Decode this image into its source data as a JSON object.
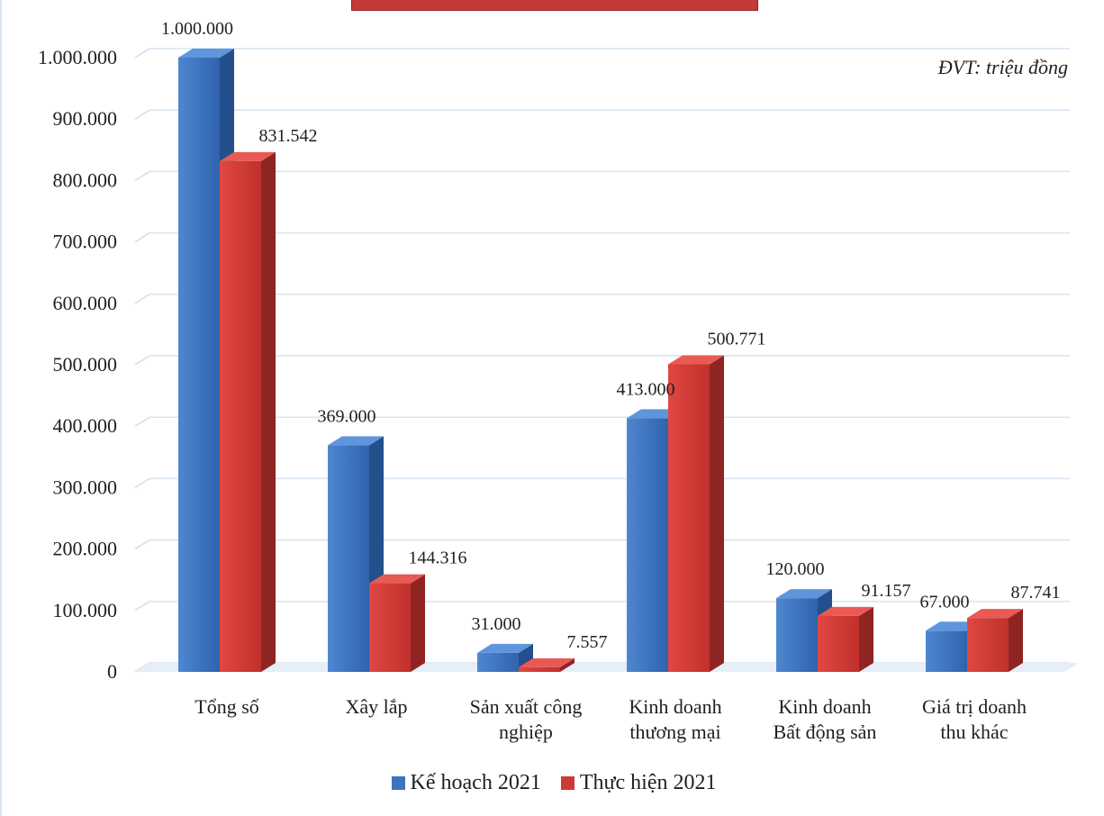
{
  "chart_data": {
    "type": "bar",
    "title": "",
    "unit_note": "ĐVT: triệu đồng",
    "categories": [
      [
        "Tổng số"
      ],
      [
        "Xây lắp"
      ],
      [
        "Sản xuất công",
        "nghiệp"
      ],
      [
        "Kinh doanh",
        "thương mại"
      ],
      [
        "Kinh doanh",
        "Bất động sản"
      ],
      [
        "Giá trị doanh",
        "thu khác"
      ]
    ],
    "series": [
      {
        "name": "Kế hoạch 2021",
        "color": "#3d74bf",
        "values": [
          1000000,
          369000,
          31000,
          413000,
          120000,
          67000
        ],
        "labels": [
          "1.000.000",
          "369.000",
          "31.000",
          "413.000",
          "120.000",
          "67.000"
        ]
      },
      {
        "name": "Thực hiện 2021",
        "color": "#d03a35",
        "values": [
          831542,
          144316,
          7557,
          500771,
          91157,
          87741
        ],
        "labels": [
          "831.542",
          "144.316",
          "7.557",
          "500.771",
          "91.157",
          "87.741"
        ]
      }
    ],
    "y_ticks": [
      0,
      100000,
      200000,
      300000,
      400000,
      500000,
      600000,
      700000,
      800000,
      900000,
      1000000
    ],
    "y_tick_labels": [
      "0",
      "100.000",
      "200.000",
      "300.000",
      "400.000",
      "500.000",
      "600.000",
      "700.000",
      "800.000",
      "900.000",
      "1.000.000"
    ],
    "ylim": [
      0,
      1000000
    ],
    "grid": true,
    "legend_position": "bottom-center"
  }
}
